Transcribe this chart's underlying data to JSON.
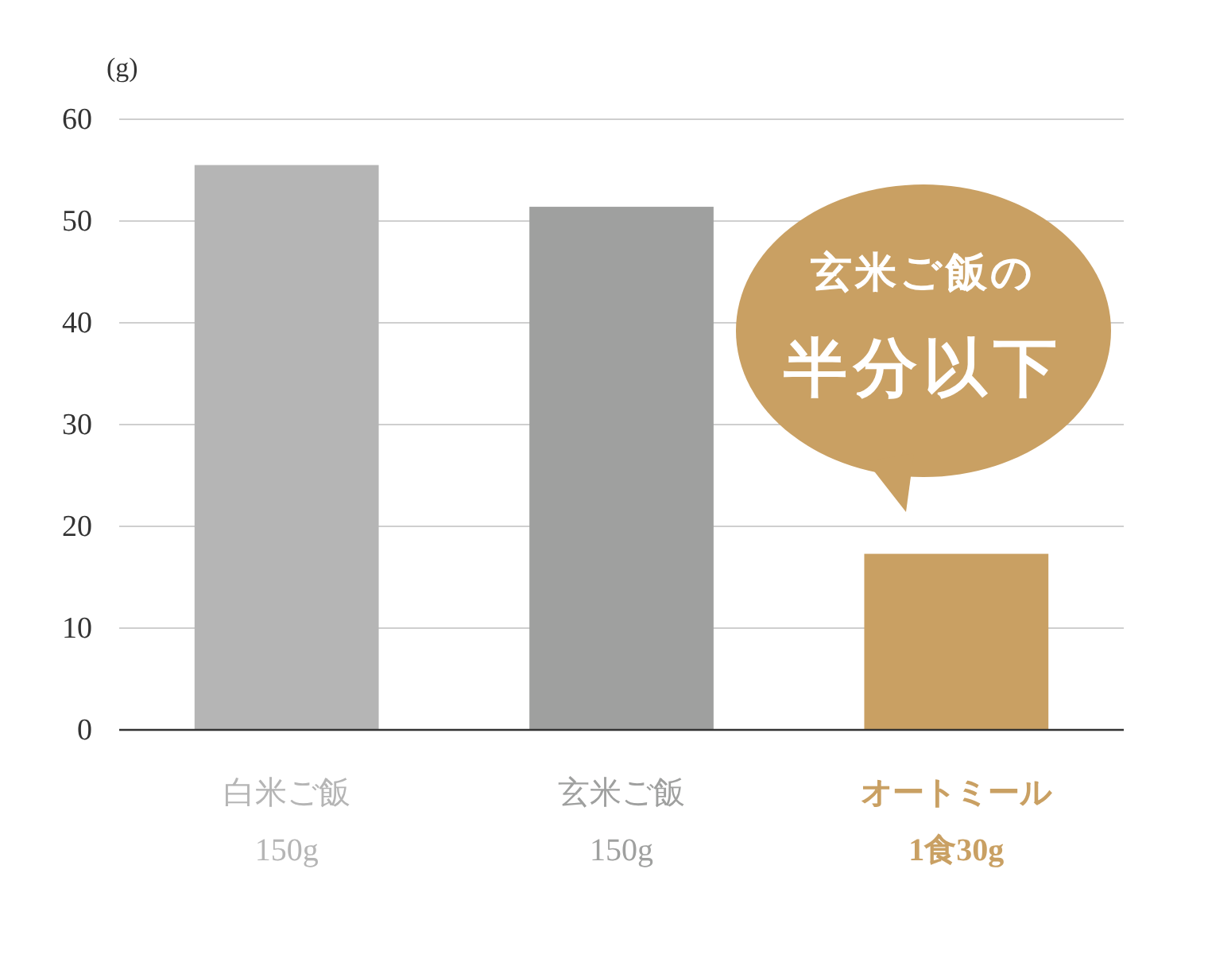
{
  "chart_data": {
    "type": "bar",
    "ylabel": "(g)",
    "categories": [
      "白米ご飯\n150g",
      "玄米ご飯\n150g",
      "オートミール\n1食30g"
    ],
    "values": [
      55.5,
      51.4,
      17.3
    ],
    "colors": [
      "#b5b5b5",
      "#9fa09f",
      "#c9a063"
    ],
    "ylim": [
      0,
      60
    ],
    "yticks": [
      0,
      10,
      20,
      30,
      40,
      50,
      60
    ],
    "grid": "y",
    "annotations": [
      "玄米ご飯の",
      "半分以下"
    ]
  }
}
